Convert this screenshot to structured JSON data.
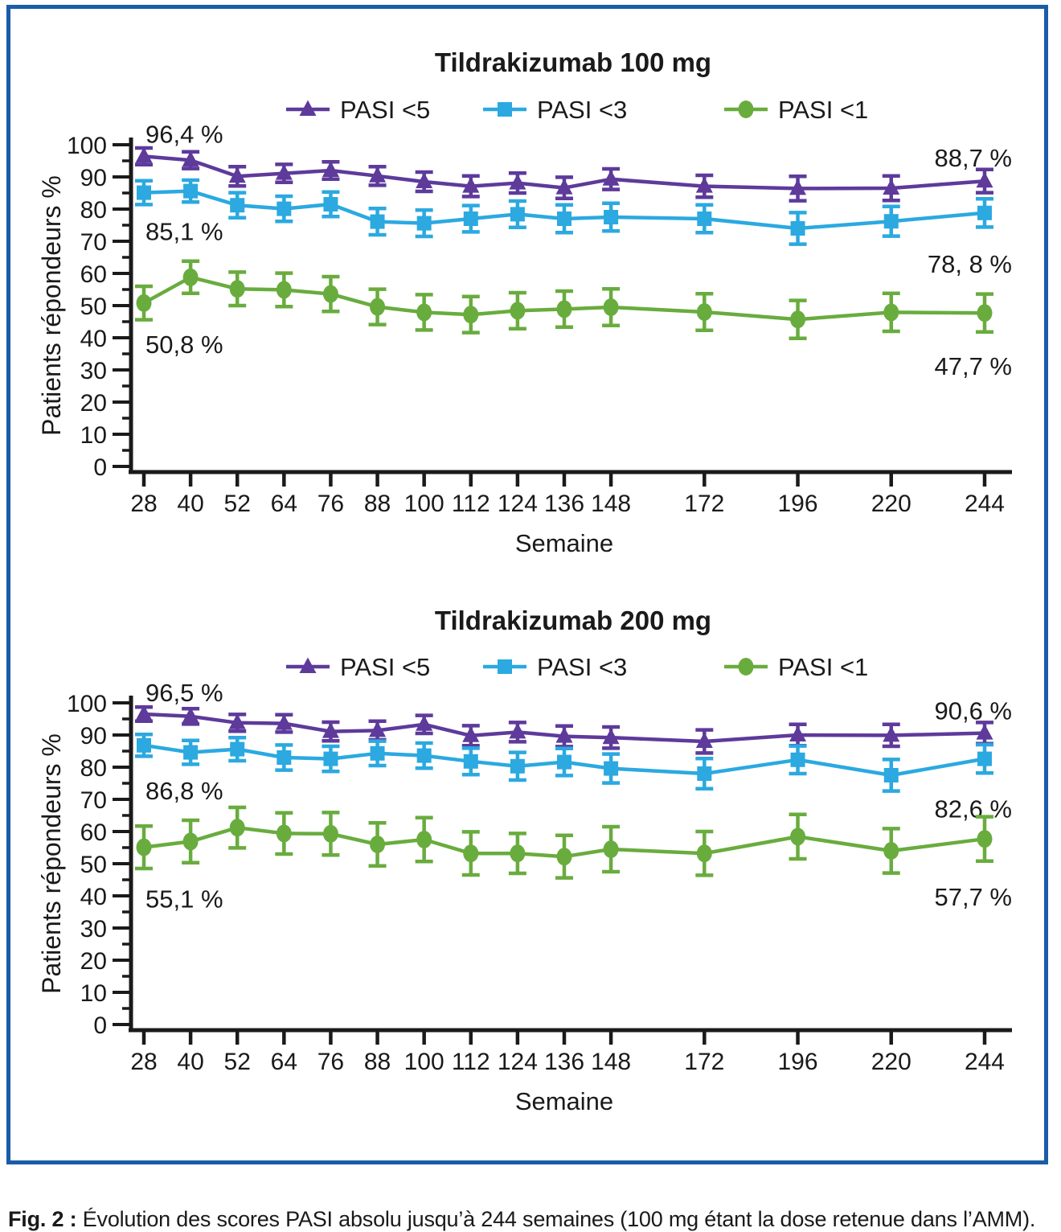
{
  "figure": {
    "border_color": "#1A5CA8",
    "series_colors": {
      "pasi5": "#5E3A9B",
      "pasi3": "#2BA9E0",
      "pasi1": "#69AC3E"
    }
  },
  "caption": {
    "prefix": "Fig. 2 :",
    "text": " Évolution des scores PASI absolu jusqu’à 244 semaines (100 mg étant la dose retenue dans l’AMM)."
  },
  "chart_data": [
    {
      "type": "line",
      "title": "Tildrakizumab 100 mg",
      "xlabel": "Semaine",
      "ylabel": "Patients répondeurs %",
      "x": [
        28,
        40,
        52,
        64,
        76,
        88,
        100,
        112,
        124,
        136,
        148,
        172,
        196,
        220,
        244
      ],
      "ylim": [
        0,
        100
      ],
      "ytick_step": 10,
      "grid": false,
      "legend_position": "top",
      "series": [
        {
          "name": "PASI <5",
          "marker": "triangle",
          "color": "#5E3A9B",
          "values": [
            96.4,
            95.2,
            90.2,
            91.1,
            92.0,
            90.3,
            88.5,
            87.1,
            88.1,
            86.6,
            89.3,
            87.1,
            86.4,
            86.5,
            88.7
          ],
          "errors": [
            2.6,
            2.6,
            3.0,
            2.8,
            2.7,
            2.9,
            3.0,
            3.2,
            3.1,
            3.3,
            3.2,
            3.4,
            3.8,
            3.8,
            3.6
          ],
          "annotations": {
            "start": "96,4 %",
            "end": "88,7 %"
          }
        },
        {
          "name": "PASI <3",
          "marker": "square",
          "color": "#2BA9E0",
          "values": [
            85.1,
            85.6,
            81.2,
            80.1,
            81.5,
            76.1,
            75.6,
            77.0,
            78.4,
            77.0,
            77.5,
            77.0,
            74.0,
            76.2,
            78.8
          ],
          "errors": [
            3.7,
            3.4,
            3.9,
            3.9,
            3.8,
            4.1,
            4.1,
            4.1,
            4.1,
            4.3,
            4.3,
            4.3,
            4.9,
            4.6,
            4.4
          ],
          "annotations": {
            "start": "85,1 %",
            "end": "78, 8 %"
          }
        },
        {
          "name": "PASI <1",
          "marker": "circle",
          "color": "#69AC3E",
          "values": [
            50.8,
            58.8,
            55.2,
            54.9,
            53.6,
            49.6,
            47.9,
            47.2,
            48.4,
            48.9,
            49.5,
            48.0,
            45.7,
            47.9,
            47.7
          ],
          "errors": [
            5.2,
            5.0,
            5.2,
            5.2,
            5.4,
            5.5,
            5.5,
            5.6,
            5.6,
            5.6,
            5.7,
            5.7,
            5.9,
            5.9,
            5.9
          ],
          "annotations": {
            "start": "50,8 %",
            "end": "47,7 %"
          }
        }
      ]
    },
    {
      "type": "line",
      "title": "Tildrakizumab 200 mg",
      "xlabel": "Semaine",
      "ylabel": "Patients répondeurs %",
      "x": [
        28,
        40,
        52,
        64,
        76,
        88,
        100,
        112,
        124,
        136,
        148,
        172,
        196,
        220,
        244
      ],
      "ylim": [
        0,
        100
      ],
      "ytick_step": 10,
      "grid": false,
      "legend_position": "top",
      "series": [
        {
          "name": "PASI <5",
          "marker": "triangle",
          "color": "#5E3A9B",
          "values": [
            96.5,
            95.8,
            93.8,
            93.6,
            91.1,
            91.4,
            93.3,
            89.8,
            90.9,
            89.6,
            89.2,
            88.0,
            90.0,
            89.9,
            90.6
          ],
          "errors": [
            2.2,
            2.4,
            2.6,
            2.7,
            2.9,
            2.9,
            2.8,
            3.1,
            3.0,
            3.2,
            3.3,
            3.6,
            3.3,
            3.4,
            3.3
          ],
          "annotations": {
            "start": "96,5 %",
            "end": "90,6 %"
          }
        },
        {
          "name": "PASI <3",
          "marker": "square",
          "color": "#2BA9E0",
          "values": [
            86.8,
            84.6,
            85.6,
            83.0,
            82.6,
            84.3,
            83.6,
            81.8,
            80.3,
            81.6,
            79.6,
            78.0,
            82.3,
            77.5,
            82.6
          ],
          "errors": [
            3.4,
            3.7,
            3.6,
            3.9,
            3.9,
            3.8,
            3.9,
            4.1,
            4.3,
            4.2,
            4.5,
            4.7,
            4.3,
            4.9,
            4.4
          ],
          "annotations": {
            "start": "86,8 %",
            "end": "82,6 %"
          }
        },
        {
          "name": "PASI <1",
          "marker": "circle",
          "color": "#69AC3E",
          "values": [
            55.1,
            56.9,
            61.2,
            59.4,
            59.3,
            56.0,
            57.5,
            53.2,
            53.2,
            52.2,
            54.5,
            53.2,
            58.4,
            54.0,
            57.7
          ],
          "errors": [
            6.6,
            6.6,
            6.3,
            6.4,
            6.6,
            6.7,
            6.8,
            6.7,
            6.2,
            6.6,
            7.0,
            6.8,
            6.9,
            6.9,
            6.9
          ],
          "annotations": {
            "start": "55,1 %",
            "end": "57,7 %"
          }
        }
      ]
    }
  ]
}
